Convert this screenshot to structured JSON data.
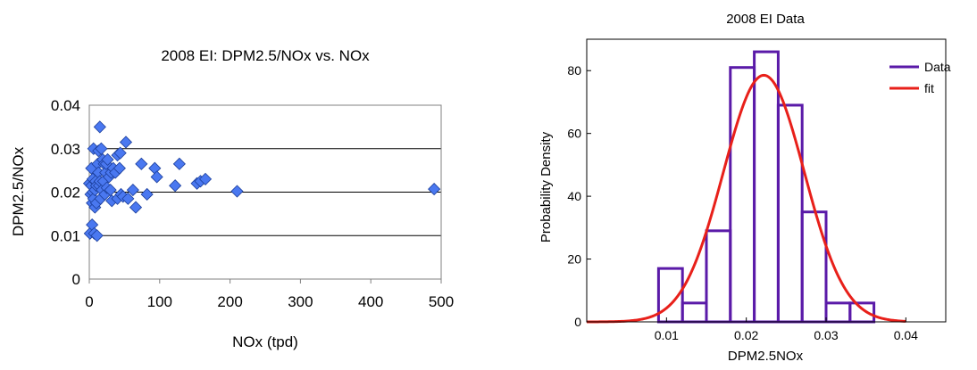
{
  "chart_data": [
    {
      "type": "scatter",
      "title": "2008 EI: DPM2.5/NOx vs. NOx",
      "xlabel": "NOx (tpd)",
      "ylabel": "DPM2.5/NOx",
      "xlim": [
        0,
        500
      ],
      "ylim": [
        0,
        0.04
      ],
      "xticks": [
        "0",
        "100",
        "200",
        "300",
        "400",
        "500"
      ],
      "yticks": [
        "0",
        "0.01",
        "0.02",
        "0.03",
        "0.04"
      ],
      "grid": "horizontal",
      "marker": "diamond",
      "marker_color": "#4a78f0",
      "points": [
        [
          0,
          0.022
        ],
        [
          1,
          0.0105
        ],
        [
          2,
          0.0195
        ],
        [
          3,
          0.0255
        ],
        [
          3,
          0.0215
        ],
        [
          4,
          0.0125
        ],
        [
          4,
          0.0175
        ],
        [
          5,
          0.02
        ],
        [
          5,
          0.023
        ],
        [
          6,
          0.0185
        ],
        [
          6,
          0.03
        ],
        [
          7,
          0.0105
        ],
        [
          8,
          0.0205
        ],
        [
          8,
          0.0165
        ],
        [
          9,
          0.0225
        ],
        [
          10,
          0.0175
        ],
        [
          10,
          0.0215
        ],
        [
          11,
          0.01
        ],
        [
          12,
          0.0265
        ],
        [
          13,
          0.0295
        ],
        [
          13,
          0.0245
        ],
        [
          14,
          0.0215
        ],
        [
          15,
          0.035
        ],
        [
          15,
          0.0225
        ],
        [
          16,
          0.0185
        ],
        [
          17,
          0.03
        ],
        [
          18,
          0.0205
        ],
        [
          19,
          0.0275
        ],
        [
          20,
          0.0225
        ],
        [
          21,
          0.0265
        ],
        [
          22,
          0.0195
        ],
        [
          23,
          0.0245
        ],
        [
          24,
          0.0265
        ],
        [
          25,
          0.021
        ],
        [
          26,
          0.0275
        ],
        [
          28,
          0.0235
        ],
        [
          30,
          0.0205
        ],
        [
          31,
          0.0245
        ],
        [
          32,
          0.018
        ],
        [
          34,
          0.0255
        ],
        [
          37,
          0.0245
        ],
        [
          40,
          0.0285
        ],
        [
          40,
          0.0185
        ],
        [
          43,
          0.0255
        ],
        [
          44,
          0.029
        ],
        [
          45,
          0.0195
        ],
        [
          48,
          0.019
        ],
        [
          52,
          0.0315
        ],
        [
          55,
          0.0185
        ],
        [
          62,
          0.0205
        ],
        [
          66,
          0.0165
        ],
        [
          74,
          0.0265
        ],
        [
          82,
          0.0195
        ],
        [
          93,
          0.0255
        ],
        [
          96,
          0.0235
        ],
        [
          122,
          0.0215
        ],
        [
          128,
          0.0265
        ],
        [
          153,
          0.022
        ],
        [
          158,
          0.0225
        ],
        [
          165,
          0.023
        ],
        [
          210,
          0.0202
        ],
        [
          490,
          0.0207
        ]
      ]
    },
    {
      "type": "histogram",
      "title": "2008 EI Data",
      "xlabel": "DPM2.5NOx",
      "ylabel": "Probability Density",
      "xlim": [
        0,
        0.045
      ],
      "ylim": [
        0,
        90
      ],
      "xticks": [
        "0.01",
        "0.02",
        "0.03",
        "0.04"
      ],
      "yticks": [
        "0",
        "20",
        "40",
        "60",
        "80"
      ],
      "legend": {
        "position": "top-right",
        "entries": [
          "Data",
          "fit"
        ]
      },
      "bin_edges": [
        0.009,
        0.012,
        0.015,
        0.018,
        0.021,
        0.024,
        0.027,
        0.03,
        0.033,
        0.036
      ],
      "densities": [
        17,
        6,
        29,
        81,
        86,
        69,
        35,
        6,
        6
      ],
      "series": [
        {
          "name": "Data",
          "color": "#5a1aa8"
        },
        {
          "name": "fit",
          "color": "#e8201a",
          "fit": {
            "distribution": "normal",
            "mean": 0.0222,
            "sd": 0.00508
          }
        }
      ]
    }
  ]
}
